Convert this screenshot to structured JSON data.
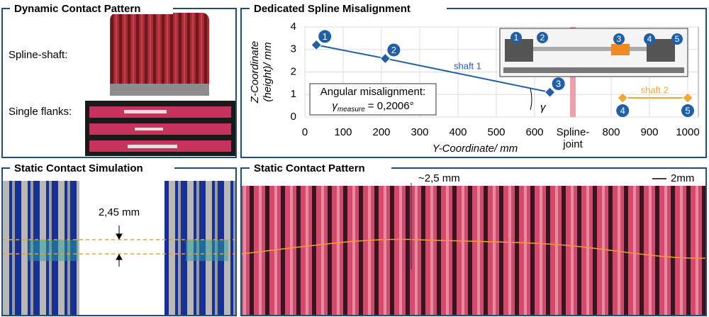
{
  "panels": {
    "dynamic": {
      "title": "Dynamic Contact Pattern",
      "spline_shaft": "Spline-shaft:",
      "single_flanks": "Single flanks:"
    },
    "static_sim": {
      "title": "Static Contact Simulation",
      "gap": "2,45 mm"
    },
    "static_pattern": {
      "title": "Static Contact Pattern",
      "offset": "~2,5 mm",
      "scale": "2mm"
    }
  },
  "chart_data": {
    "type": "line",
    "title": "Dedicated Spline Misalignment",
    "xlabel": "Y-Coordinate/ mm",
    "ylabel": [
      "Z-Coordinate",
      "(height)/ mm"
    ],
    "xlim": [
      0,
      1000
    ],
    "ylim": [
      0,
      4
    ],
    "xticks": [
      0,
      100,
      200,
      300,
      400,
      500,
      600,
      {
        "value": 700,
        "label": "Spline-joint"
      },
      800,
      900,
      1000
    ],
    "yticks": [
      0,
      1,
      2,
      3,
      4
    ],
    "grid": true,
    "series": [
      {
        "name": "shaft 1",
        "color": "#1f5fa8",
        "x": [
          30,
          210,
          640
        ],
        "values": [
          3.2,
          2.6,
          1.1
        ],
        "point_labels": [
          "1",
          "2",
          "3"
        ]
      },
      {
        "name": "shaft 2",
        "color": "#f0a830",
        "x": [
          830,
          1000
        ],
        "values": [
          0.85,
          0.85
        ],
        "point_labels": [
          "4",
          "5"
        ]
      }
    ],
    "annotation": {
      "title": "Angular misalignment:",
      "symbol": "γ",
      "subscript": "measure",
      "value": "= 0,2006°"
    },
    "angle_label": "γ",
    "inset_labels": [
      "1",
      "2",
      "3",
      "4",
      "5"
    ]
  }
}
